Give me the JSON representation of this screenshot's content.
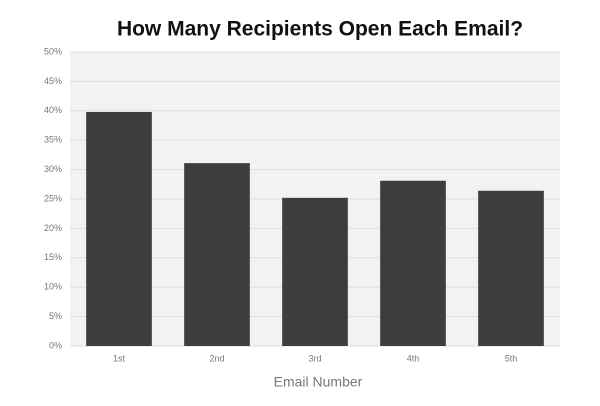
{
  "chart_data": {
    "type": "bar",
    "title": "How Many Recipients Open Each Email?",
    "x_label": "Email Number",
    "categories": [
      "1st",
      "2nd",
      "3rd",
      "4th",
      "5th"
    ],
    "values": [
      39.8,
      31.1,
      25.2,
      28.1,
      26.4
    ],
    "color": "#3d3d3d",
    "ylim": [
      0,
      50
    ],
    "yticks": [
      {
        "value": 0,
        "label": "0%"
      },
      {
        "value": 5,
        "label": "5%"
      },
      {
        "value": 10,
        "label": "10%"
      },
      {
        "value": 15,
        "label": "15%"
      },
      {
        "value": 20,
        "label": "20%"
      },
      {
        "value": 25,
        "label": "25%"
      },
      {
        "value": 30,
        "label": "30%"
      },
      {
        "value": 35,
        "label": "35%"
      },
      {
        "value": 40,
        "label": "40%"
      },
      {
        "value": 45,
        "label": "45%"
      },
      {
        "value": 50,
        "label": "50%"
      }
    ],
    "grid": true
  }
}
